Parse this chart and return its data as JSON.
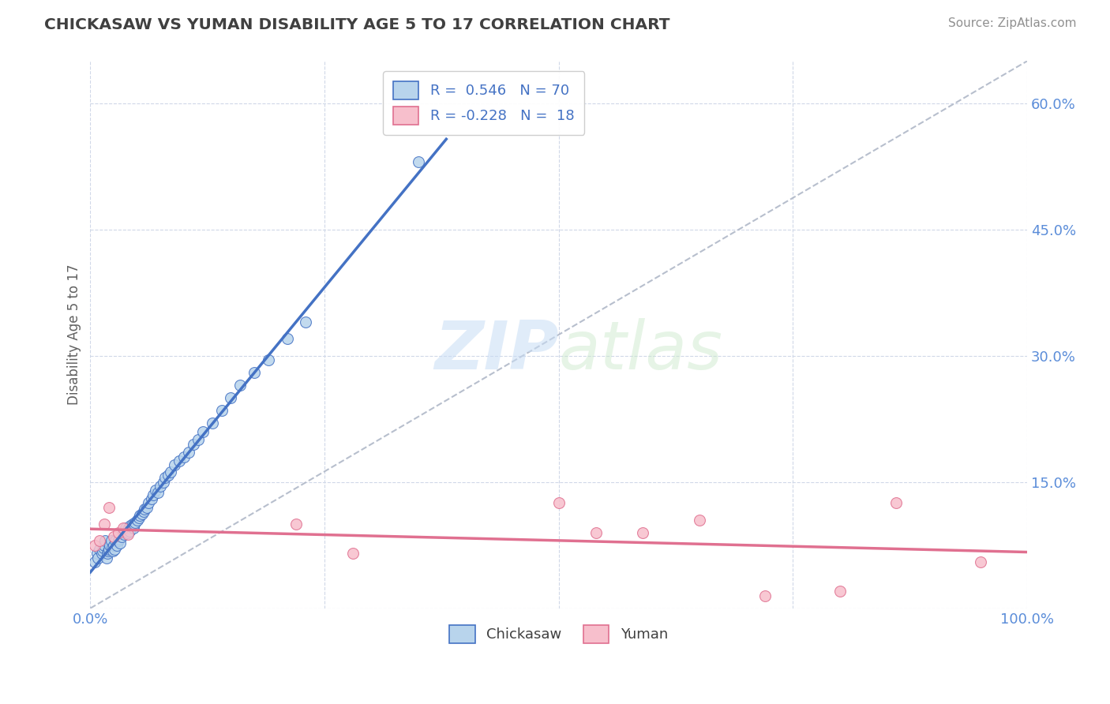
{
  "title": "CHICKASAW VS YUMAN DISABILITY AGE 5 TO 17 CORRELATION CHART",
  "source": "Source: ZipAtlas.com",
  "ylabel": "Disability Age 5 to 17",
  "xlim": [
    0.0,
    1.0
  ],
  "ylim": [
    0.0,
    0.65
  ],
  "xticks": [
    0.0,
    0.25,
    0.5,
    0.75,
    1.0
  ],
  "xticklabels": [
    "0.0%",
    "",
    "",
    "",
    "100.0%"
  ],
  "yticks": [
    0.0,
    0.15,
    0.3,
    0.45,
    0.6
  ],
  "yticklabels": [
    "",
    "15.0%",
    "30.0%",
    "45.0%",
    "60.0%"
  ],
  "chickasaw_R": 0.546,
  "chickasaw_N": 70,
  "yuman_R": -0.228,
  "yuman_N": 18,
  "chickasaw_color": "#b8d4ec",
  "yuman_color": "#f7bfcc",
  "chickasaw_line_color": "#4472c4",
  "yuman_line_color": "#e07090",
  "trendline_color": "#b0b8c8",
  "background_color": "#ffffff",
  "grid_color": "#d0d8e8",
  "title_color": "#404040",
  "chickasaw_x": [
    0.005,
    0.007,
    0.008,
    0.01,
    0.012,
    0.013,
    0.014,
    0.015,
    0.016,
    0.017,
    0.018,
    0.019,
    0.02,
    0.021,
    0.022,
    0.023,
    0.024,
    0.025,
    0.026,
    0.027,
    0.028,
    0.03,
    0.031,
    0.032,
    0.033,
    0.035,
    0.036,
    0.037,
    0.038,
    0.04,
    0.041,
    0.042,
    0.043,
    0.045,
    0.046,
    0.047,
    0.048,
    0.05,
    0.052,
    0.053,
    0.055,
    0.057,
    0.058,
    0.06,
    0.062,
    0.065,
    0.067,
    0.07,
    0.072,
    0.075,
    0.078,
    0.08,
    0.083,
    0.086,
    0.09,
    0.095,
    0.1,
    0.105,
    0.11,
    0.115,
    0.12,
    0.13,
    0.14,
    0.15,
    0.16,
    0.175,
    0.19,
    0.21,
    0.23,
    0.35
  ],
  "chickasaw_y": [
    0.055,
    0.065,
    0.06,
    0.07,
    0.065,
    0.068,
    0.072,
    0.075,
    0.08,
    0.06,
    0.065,
    0.068,
    0.07,
    0.075,
    0.08,
    0.072,
    0.068,
    0.075,
    0.07,
    0.08,
    0.075,
    0.08,
    0.082,
    0.078,
    0.085,
    0.09,
    0.088,
    0.092,
    0.095,
    0.09,
    0.095,
    0.092,
    0.098,
    0.1,
    0.095,
    0.1,
    0.102,
    0.105,
    0.108,
    0.11,
    0.112,
    0.115,
    0.118,
    0.12,
    0.125,
    0.13,
    0.135,
    0.14,
    0.138,
    0.145,
    0.15,
    0.155,
    0.158,
    0.162,
    0.17,
    0.175,
    0.18,
    0.185,
    0.195,
    0.2,
    0.21,
    0.22,
    0.235,
    0.25,
    0.265,
    0.28,
    0.295,
    0.32,
    0.34,
    0.53
  ],
  "yuman_x": [
    0.005,
    0.01,
    0.015,
    0.02,
    0.025,
    0.03,
    0.035,
    0.04,
    0.22,
    0.28,
    0.5,
    0.54,
    0.59,
    0.65,
    0.72,
    0.8,
    0.86,
    0.95
  ],
  "yuman_y": [
    0.075,
    0.08,
    0.1,
    0.12,
    0.085,
    0.09,
    0.095,
    0.088,
    0.1,
    0.065,
    0.125,
    0.09,
    0.09,
    0.105,
    0.015,
    0.02,
    0.125,
    0.055
  ],
  "marker_size": 100,
  "font_family": "DejaVu Sans",
  "legend_R_label1": "R =  0.546   N = 70",
  "legend_R_label2": "R = -0.228   N =  18"
}
